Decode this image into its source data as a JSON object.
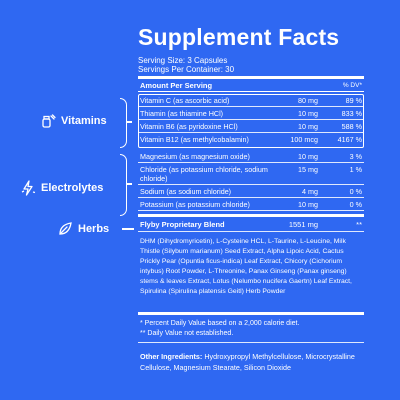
{
  "header": {
    "title": "Supplement Facts",
    "serving_size": "Serving Size: 3 Capsules",
    "servings_per_container": "Servings Per Container: 30"
  },
  "table": {
    "col_amount": "Amount Per Serving",
    "col_dv": "% DV*",
    "vitamins": [
      {
        "name": "Vitamin C (as ascorbic acid)",
        "amount": "80 mg",
        "dv": "89 %"
      },
      {
        "name": "Thiamin (as thiamine HCl)",
        "amount": "10 mg",
        "dv": "833 %"
      },
      {
        "name": "Vitamin B6 (as pyridoxine HCl)",
        "amount": "10 mg",
        "dv": "588 %"
      },
      {
        "name": "Vitamin B12 (as methylcobalamin)",
        "amount": "100 mcg",
        "dv": "4167 %"
      }
    ],
    "electrolytes": [
      {
        "name": "Magnesium (as magnesium oxide)",
        "amount": "10 mg",
        "dv": "3 %"
      },
      {
        "name": "Chloride (as potassium chloride, sodium chloride)",
        "amount": "15 mg",
        "dv": "1 %"
      },
      {
        "name": "Sodium (as sodium chloride)",
        "amount": "4 mg",
        "dv": "0 %"
      },
      {
        "name": "Potassium (as potassium chloride)",
        "amount": "10 mg",
        "dv": "0 %"
      }
    ],
    "blend": {
      "name": "Flyby Proprietary Blend",
      "amount": "1551 mg",
      "dv": "**"
    },
    "blend_ingredients": "DHM (Dihydromyricetin), L-Cysteine HCL, L-Taurine, L-Leucine, Milk Thistle (Silybum marianum) Seed Extract, Alpha Lipoic Acid, Cactus Prickly Pear (Opuntia ficus-indica) Leaf Extract, Chicory (Cichorium intybus) Root Powder, L-Threonine, Panax Ginseng (Panax ginseng) stems & leaves Extract, Lotus (Nelumbo nucifera Gaertn) Leaf Extract, Spirulina (Spirulina platensis Geitl) Herb Powder"
  },
  "footnotes": {
    "dv_note": "* Percent Daily Value based on a 2,000 calorie diet.",
    "not_established": "** Daily Value not established."
  },
  "other_ingredients": {
    "label": "Other Ingredients:",
    "text": "Hydroxypropyl Methylcellulose, Microcrystalline Cellulose, Magnesium Stearate, Silicon Dioxide"
  },
  "categories": {
    "vitamins": "Vitamins",
    "electrolytes": "Electrolytes",
    "herbs": "Herbs"
  },
  "colors": {
    "background": "#2f68f2",
    "text": "#ffffff"
  },
  "icons": [
    "pill-bottle-icon",
    "lightning-icon",
    "leaf-icon"
  ]
}
